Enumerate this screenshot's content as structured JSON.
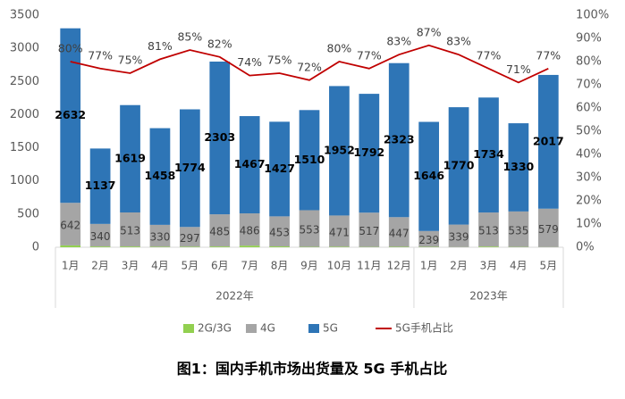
{
  "chart_data": {
    "type": "bar-line",
    "title": "图1：国内手机市场出货量及 5G 手机占比",
    "categories": [
      "1月",
      "2月",
      "3月",
      "4月",
      "5月",
      "6月",
      "7月",
      "8月",
      "9月",
      "10月",
      "11月",
      "12月",
      "1月",
      "2月",
      "3月",
      "4月",
      "5月"
    ],
    "year_groups": [
      "2022年",
      "2023年"
    ],
    "series": [
      {
        "name": "2G/3G",
        "color": "#92d050",
        "values": [
          28,
          12,
          12,
          8,
          9,
          12,
          25,
          13,
          6,
          8,
          5,
          7,
          6,
          3,
          11,
          5,
          3
        ]
      },
      {
        "name": "4G",
        "color": "#a5a5a5",
        "values": [
          642,
          340,
          513,
          330,
          297,
          485,
          486,
          453,
          553,
          471,
          517,
          447,
          239,
          339,
          513,
          535,
          579
        ]
      },
      {
        "name": "5G",
        "color": "#2e75b6",
        "values": [
          2632,
          1137,
          1619,
          1458,
          1774,
          2303,
          1467,
          1427,
          1510,
          1952,
          1792,
          2323,
          1646,
          1770,
          1734,
          1330,
          2017
        ]
      },
      {
        "name": "5G手机占比",
        "color": "#c00000",
        "axis": "y2",
        "values": [
          80,
          77,
          75,
          81,
          85,
          82,
          74,
          75,
          72,
          80,
          77,
          83,
          87,
          83,
          77,
          71,
          77
        ],
        "value_labels": [
          "80%",
          "77%",
          "75%",
          "81%",
          "85%",
          "82%",
          "74%",
          "75%",
          "72%",
          "80%",
          "77%",
          "83%",
          "87%",
          "83%",
          "77%",
          "71%",
          "77%"
        ]
      }
    ],
    "ylim": [
      0,
      3500
    ],
    "yticks": [
      0,
      500,
      1000,
      1500,
      2000,
      2500,
      3000,
      3500
    ],
    "y2lim": [
      0,
      100
    ],
    "y2ticks": [
      {
        "value": 0,
        "label": "0%"
      },
      {
        "value": 10,
        "label": "10%"
      },
      {
        "value": 20,
        "label": "20%"
      },
      {
        "value": 30,
        "label": "30%"
      },
      {
        "value": 40,
        "label": "40%"
      },
      {
        "value": 50,
        "label": "50%"
      },
      {
        "value": 60,
        "label": "60%"
      },
      {
        "value": 70,
        "label": "70%"
      },
      {
        "value": 80,
        "label": "80%"
      },
      {
        "value": 90,
        "label": "90%"
      },
      {
        "value": 100,
        "label": "100%"
      }
    ],
    "legend": "bottom"
  }
}
